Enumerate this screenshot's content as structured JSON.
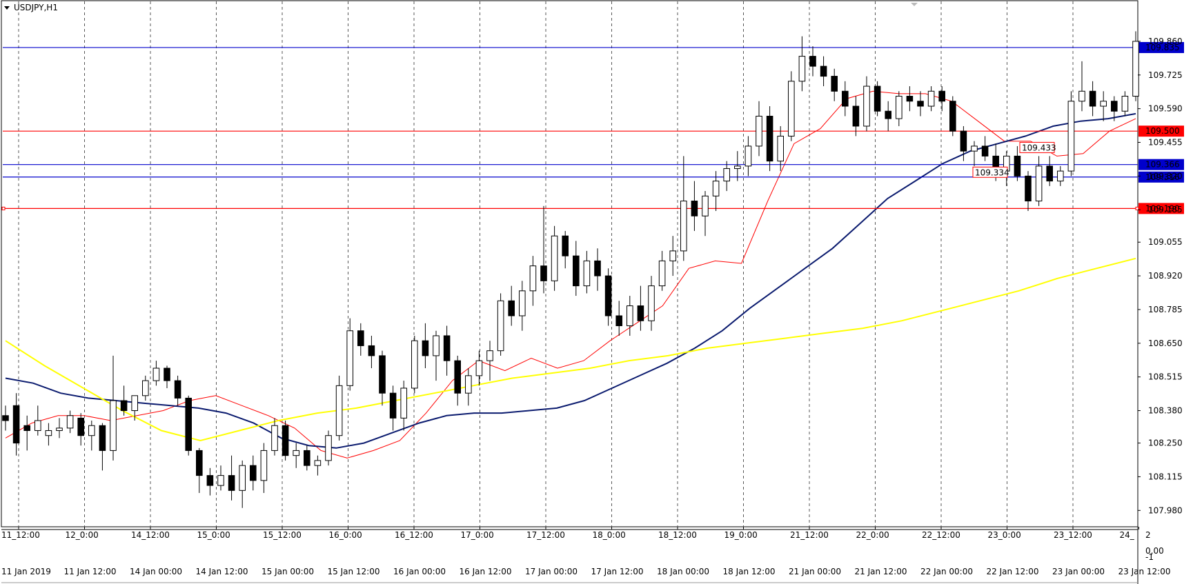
{
  "window": {
    "title": "USDJPY,H1"
  },
  "chart_data": {
    "type": "candlestick",
    "symbol": "USDJPY",
    "timeframe": "H1",
    "ylim": [
      107.92,
      110.02
    ],
    "y_ticks": [
      "109.860",
      "109.725",
      "109.590",
      "109.455",
      "109.320",
      "109.185",
      "109.055",
      "108.920",
      "108.785",
      "108.650",
      "108.515",
      "108.380",
      "108.250",
      "108.115",
      "107.980"
    ],
    "x_ticks_main": [
      "11_12:00",
      "12_0:00",
      "14_12:00",
      "15_0:00",
      "15_12:00",
      "16_0:00",
      "16_12:00",
      "17_0:00",
      "17_12:00",
      "18_0:00",
      "18_12:00",
      "19_0:00",
      "21_12:00",
      "22_0:00",
      "22_12:00",
      "23_0:00",
      "23_12:00",
      "24_"
    ],
    "x_ticks_sub": [
      "11 Jan 2019",
      "11 Jan 12:00",
      "14 Jan 00:00",
      "14 Jan 12:00",
      "15 Jan 00:00",
      "15 Jan 12:00",
      "16 Jan 00:00",
      "16 Jan 12:00",
      "17 Jan 00:00",
      "17 Jan 12:00",
      "18 Jan 00:00",
      "18 Jan 12:00",
      "21 Jan 00:00",
      "21 Jan 12:00",
      "22 Jan 00:00",
      "22 Jan 12:00",
      "23 Jan 00:00",
      "23 Jan 12:00"
    ],
    "sub_window_ticks": [
      "2",
      "0,00",
      "-1"
    ],
    "horizontal_levels": [
      {
        "label": "109.835",
        "value": 109.835,
        "color": "#0000cc"
      },
      {
        "label": "109.500",
        "value": 109.5,
        "color": "#ff0000"
      },
      {
        "label": "109.366",
        "value": 109.366,
        "color": "#0000cc"
      },
      {
        "label": "109.316",
        "value": 109.316,
        "color": "#0000cc"
      },
      {
        "label": "109.190",
        "value": 109.19,
        "color": "#ff0000"
      }
    ],
    "price_labels": [
      {
        "label": "109.433",
        "value": 109.433
      },
      {
        "label": "109.334",
        "value": 109.334
      }
    ],
    "moving_averages": [
      {
        "color": "#ff0000",
        "points": [
          108.27,
          108.33,
          108.36,
          108.36,
          108.34,
          108.36,
          108.38,
          108.42,
          108.44,
          108.4,
          108.36,
          108.31,
          108.22,
          108.19,
          108.22,
          108.26,
          108.37,
          108.5,
          108.58,
          108.54,
          108.59,
          108.55,
          108.58,
          108.66,
          108.73,
          108.8,
          108.95,
          108.98,
          108.97,
          109.22,
          109.45,
          109.51,
          109.63,
          109.66,
          109.65,
          109.65,
          109.62,
          109.54,
          109.46,
          109.46,
          109.4,
          109.41,
          109.5,
          109.55
        ]
      },
      {
        "color": "#0a1a6e",
        "points": [
          108.51,
          108.49,
          108.45,
          108.43,
          108.42,
          108.41,
          108.4,
          108.39,
          108.37,
          108.33,
          108.27,
          108.24,
          108.23,
          108.25,
          108.29,
          108.33,
          108.36,
          108.37,
          108.37,
          108.38,
          108.39,
          108.42,
          108.47,
          108.52,
          108.57,
          108.63,
          108.7,
          108.79,
          108.87,
          108.95,
          109.03,
          109.13,
          109.23,
          109.3,
          109.37,
          109.42,
          109.45,
          109.48,
          109.52,
          109.54,
          109.55,
          109.57
        ]
      },
      {
        "color": "#ffff00",
        "points": [
          108.66,
          108.56,
          108.47,
          108.38,
          108.3,
          108.26,
          108.3,
          108.34,
          108.37,
          108.39,
          108.42,
          108.45,
          108.48,
          108.51,
          108.53,
          108.55,
          108.58,
          108.6,
          108.63,
          108.65,
          108.67,
          108.69,
          108.71,
          108.74,
          108.78,
          108.82,
          108.86,
          108.91,
          108.95,
          108.99
        ]
      }
    ],
    "candles": [
      {
        "o": 108.36,
        "h": 108.4,
        "l": 108.3,
        "c": 108.34
      },
      {
        "o": 108.4,
        "h": 108.45,
        "l": 108.2,
        "c": 108.25
      },
      {
        "o": 108.32,
        "h": 108.36,
        "l": 108.22,
        "c": 108.3
      },
      {
        "o": 108.3,
        "h": 108.4,
        "l": 108.28,
        "c": 108.34
      },
      {
        "o": 108.28,
        "h": 108.33,
        "l": 108.24,
        "c": 108.3
      },
      {
        "o": 108.3,
        "h": 108.35,
        "l": 108.27,
        "c": 108.31
      },
      {
        "o": 108.31,
        "h": 108.38,
        "l": 108.29,
        "c": 108.36
      },
      {
        "o": 108.35,
        "h": 108.37,
        "l": 108.24,
        "c": 108.28
      },
      {
        "o": 108.28,
        "h": 108.34,
        "l": 108.22,
        "c": 108.32
      },
      {
        "o": 108.32,
        "h": 108.33,
        "l": 108.14,
        "c": 108.22
      },
      {
        "o": 108.22,
        "h": 108.6,
        "l": 108.18,
        "c": 108.42
      },
      {
        "o": 108.42,
        "h": 108.48,
        "l": 108.36,
        "c": 108.38
      },
      {
        "o": 108.38,
        "h": 108.44,
        "l": 108.34,
        "c": 108.44
      },
      {
        "o": 108.44,
        "h": 108.52,
        "l": 108.42,
        "c": 108.5
      },
      {
        "o": 108.5,
        "h": 108.58,
        "l": 108.48,
        "c": 108.55
      },
      {
        "o": 108.55,
        "h": 108.56,
        "l": 108.47,
        "c": 108.5
      },
      {
        "o": 108.5,
        "h": 108.52,
        "l": 108.4,
        "c": 108.43
      },
      {
        "o": 108.43,
        "h": 108.44,
        "l": 108.2,
        "c": 108.22
      },
      {
        "o": 108.22,
        "h": 108.23,
        "l": 108.05,
        "c": 108.12
      },
      {
        "o": 108.12,
        "h": 108.15,
        "l": 108.04,
        "c": 108.08
      },
      {
        "o": 108.08,
        "h": 108.16,
        "l": 108.06,
        "c": 108.12
      },
      {
        "o": 108.12,
        "h": 108.2,
        "l": 108.02,
        "c": 108.06
      },
      {
        "o": 108.06,
        "h": 108.18,
        "l": 107.99,
        "c": 108.16
      },
      {
        "o": 108.16,
        "h": 108.2,
        "l": 108.06,
        "c": 108.1
      },
      {
        "o": 108.1,
        "h": 108.25,
        "l": 108.05,
        "c": 108.22
      },
      {
        "o": 108.22,
        "h": 108.35,
        "l": 108.2,
        "c": 108.32
      },
      {
        "o": 108.32,
        "h": 108.34,
        "l": 108.18,
        "c": 108.2
      },
      {
        "o": 108.2,
        "h": 108.25,
        "l": 108.15,
        "c": 108.22
      },
      {
        "o": 108.22,
        "h": 108.24,
        "l": 108.14,
        "c": 108.16
      },
      {
        "o": 108.16,
        "h": 108.2,
        "l": 108.12,
        "c": 108.18
      },
      {
        "o": 108.18,
        "h": 108.3,
        "l": 108.16,
        "c": 108.28
      },
      {
        "o": 108.28,
        "h": 108.52,
        "l": 108.26,
        "c": 108.48
      },
      {
        "o": 108.48,
        "h": 108.75,
        "l": 108.46,
        "c": 108.7
      },
      {
        "o": 108.7,
        "h": 108.73,
        "l": 108.6,
        "c": 108.64
      },
      {
        "o": 108.64,
        "h": 108.68,
        "l": 108.55,
        "c": 108.6
      },
      {
        "o": 108.6,
        "h": 108.62,
        "l": 108.4,
        "c": 108.45
      },
      {
        "o": 108.45,
        "h": 108.48,
        "l": 108.3,
        "c": 108.35
      },
      {
        "o": 108.35,
        "h": 108.5,
        "l": 108.3,
        "c": 108.47
      },
      {
        "o": 108.47,
        "h": 108.68,
        "l": 108.45,
        "c": 108.66
      },
      {
        "o": 108.66,
        "h": 108.73,
        "l": 108.55,
        "c": 108.6
      },
      {
        "o": 108.6,
        "h": 108.7,
        "l": 108.5,
        "c": 108.68
      },
      {
        "o": 108.68,
        "h": 108.72,
        "l": 108.52,
        "c": 108.58
      },
      {
        "o": 108.58,
        "h": 108.6,
        "l": 108.4,
        "c": 108.45
      },
      {
        "o": 108.45,
        "h": 108.55,
        "l": 108.4,
        "c": 108.52
      },
      {
        "o": 108.52,
        "h": 108.62,
        "l": 108.48,
        "c": 108.58
      },
      {
        "o": 108.58,
        "h": 108.66,
        "l": 108.5,
        "c": 108.62
      },
      {
        "o": 108.62,
        "h": 108.85,
        "l": 108.6,
        "c": 108.82
      },
      {
        "o": 108.82,
        "h": 108.88,
        "l": 108.72,
        "c": 108.76
      },
      {
        "o": 108.76,
        "h": 108.9,
        "l": 108.7,
        "c": 108.86
      },
      {
        "o": 108.86,
        "h": 109.0,
        "l": 108.8,
        "c": 108.96
      },
      {
        "o": 108.96,
        "h": 109.2,
        "l": 108.85,
        "c": 108.9
      },
      {
        "o": 108.9,
        "h": 109.12,
        "l": 108.86,
        "c": 109.08
      },
      {
        "o": 109.08,
        "h": 109.1,
        "l": 108.95,
        "c": 109.0
      },
      {
        "o": 109.0,
        "h": 109.06,
        "l": 108.84,
        "c": 108.88
      },
      {
        "o": 108.88,
        "h": 109.02,
        "l": 108.85,
        "c": 108.98
      },
      {
        "o": 108.98,
        "h": 109.03,
        "l": 108.86,
        "c": 108.92
      },
      {
        "o": 108.92,
        "h": 108.95,
        "l": 108.72,
        "c": 108.76
      },
      {
        "o": 108.76,
        "h": 108.82,
        "l": 108.68,
        "c": 108.72
      },
      {
        "o": 108.72,
        "h": 108.84,
        "l": 108.68,
        "c": 108.8
      },
      {
        "o": 108.8,
        "h": 108.88,
        "l": 108.7,
        "c": 108.74
      },
      {
        "o": 108.74,
        "h": 108.92,
        "l": 108.7,
        "c": 108.88
      },
      {
        "o": 108.88,
        "h": 109.02,
        "l": 108.86,
        "c": 108.98
      },
      {
        "o": 108.98,
        "h": 109.08,
        "l": 108.92,
        "c": 109.02
      },
      {
        "o": 109.02,
        "h": 109.4,
        "l": 108.98,
        "c": 109.22
      },
      {
        "o": 109.22,
        "h": 109.3,
        "l": 109.1,
        "c": 109.16
      },
      {
        "o": 109.16,
        "h": 109.26,
        "l": 109.08,
        "c": 109.24
      },
      {
        "o": 109.24,
        "h": 109.34,
        "l": 109.18,
        "c": 109.3
      },
      {
        "o": 109.3,
        "h": 109.38,
        "l": 109.26,
        "c": 109.35
      },
      {
        "o": 109.35,
        "h": 109.42,
        "l": 109.3,
        "c": 109.36
      },
      {
        "o": 109.36,
        "h": 109.48,
        "l": 109.32,
        "c": 109.44
      },
      {
        "o": 109.44,
        "h": 109.62,
        "l": 109.4,
        "c": 109.56
      },
      {
        "o": 109.56,
        "h": 109.6,
        "l": 109.34,
        "c": 109.38
      },
      {
        "o": 109.38,
        "h": 109.52,
        "l": 109.34,
        "c": 109.48
      },
      {
        "o": 109.48,
        "h": 109.74,
        "l": 109.46,
        "c": 109.7
      },
      {
        "o": 109.7,
        "h": 109.88,
        "l": 109.66,
        "c": 109.8
      },
      {
        "o": 109.8,
        "h": 109.84,
        "l": 109.72,
        "c": 109.76
      },
      {
        "o": 109.76,
        "h": 109.8,
        "l": 109.68,
        "c": 109.72
      },
      {
        "o": 109.72,
        "h": 109.75,
        "l": 109.62,
        "c": 109.66
      },
      {
        "o": 109.66,
        "h": 109.7,
        "l": 109.56,
        "c": 109.6
      },
      {
        "o": 109.6,
        "h": 109.64,
        "l": 109.48,
        "c": 109.52
      },
      {
        "o": 109.52,
        "h": 109.72,
        "l": 109.5,
        "c": 109.68
      },
      {
        "o": 109.68,
        "h": 109.7,
        "l": 109.56,
        "c": 109.58
      },
      {
        "o": 109.58,
        "h": 109.62,
        "l": 109.5,
        "c": 109.55
      },
      {
        "o": 109.55,
        "h": 109.66,
        "l": 109.52,
        "c": 109.64
      },
      {
        "o": 109.64,
        "h": 109.68,
        "l": 109.58,
        "c": 109.62
      },
      {
        "o": 109.62,
        "h": 109.66,
        "l": 109.56,
        "c": 109.6
      },
      {
        "o": 109.6,
        "h": 109.68,
        "l": 109.58,
        "c": 109.66
      },
      {
        "o": 109.66,
        "h": 109.68,
        "l": 109.58,
        "c": 109.62
      },
      {
        "o": 109.62,
        "h": 109.64,
        "l": 109.48,
        "c": 109.5
      },
      {
        "o": 109.5,
        "h": 109.52,
        "l": 109.38,
        "c": 109.42
      },
      {
        "o": 109.42,
        "h": 109.46,
        "l": 109.36,
        "c": 109.44
      },
      {
        "o": 109.44,
        "h": 109.48,
        "l": 109.38,
        "c": 109.4
      },
      {
        "o": 109.4,
        "h": 109.45,
        "l": 109.3,
        "c": 109.34
      },
      {
        "o": 109.34,
        "h": 109.42,
        "l": 109.28,
        "c": 109.4
      },
      {
        "o": 109.4,
        "h": 109.44,
        "l": 109.3,
        "c": 109.32
      },
      {
        "o": 109.32,
        "h": 109.34,
        "l": 109.18,
        "c": 109.22
      },
      {
        "o": 109.22,
        "h": 109.4,
        "l": 109.2,
        "c": 109.36
      },
      {
        "o": 109.36,
        "h": 109.4,
        "l": 109.28,
        "c": 109.3
      },
      {
        "o": 109.3,
        "h": 109.36,
        "l": 109.28,
        "c": 109.34
      },
      {
        "o": 109.34,
        "h": 109.66,
        "l": 109.32,
        "c": 109.62
      },
      {
        "o": 109.62,
        "h": 109.78,
        "l": 109.58,
        "c": 109.66
      },
      {
        "o": 109.66,
        "h": 109.7,
        "l": 109.56,
        "c": 109.6
      },
      {
        "o": 109.6,
        "h": 109.66,
        "l": 109.54,
        "c": 109.62
      },
      {
        "o": 109.62,
        "h": 109.64,
        "l": 109.54,
        "c": 109.58
      },
      {
        "o": 109.58,
        "h": 109.66,
        "l": 109.56,
        "c": 109.64
      },
      {
        "o": 109.64,
        "h": 109.9,
        "l": 109.62,
        "c": 109.86
      }
    ]
  }
}
